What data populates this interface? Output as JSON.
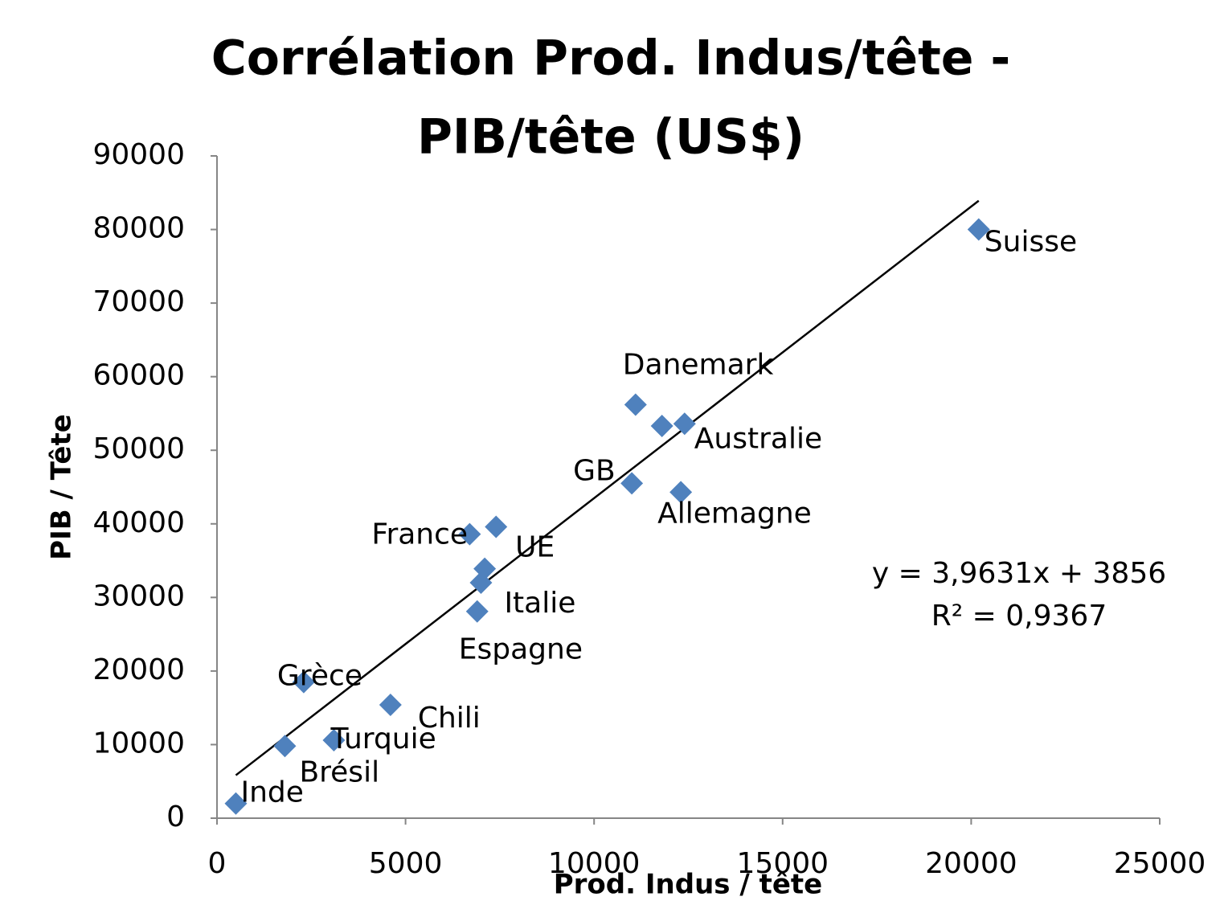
{
  "chart_data": {
    "type": "scatter",
    "title": [
      "Corrélation Prod. Indus/tête -",
      "PIB/tête (US$)"
    ],
    "x_label": "Prod. Indus / tête",
    "y_label": "PIB / Tête",
    "series": [
      {
        "color": "#4f81bd",
        "x": [
          20200,
          11100,
          11800,
          12400,
          11000,
          12300,
          6700,
          7400,
          7100,
          7000,
          6900,
          2300,
          4600,
          3100,
          1800,
          500
        ],
        "values": [
          80000,
          56200,
          53300,
          53600,
          45500,
          44300,
          38600,
          39600,
          33900,
          32000,
          28100,
          18500,
          15400,
          10600,
          9800,
          2000
        ],
        "labels": [
          "Suisse",
          "Danemark",
          null,
          "Australie",
          "GB",
          "Allemagne",
          "France",
          null,
          "UE",
          "Italie",
          "Espagne",
          "Grèce",
          "Chili",
          "Turquie",
          "Brésil",
          "Inde"
        ]
      }
    ],
    "trendline": {
      "slope": 3.9631,
      "intercept": 3856,
      "label": "y = 3,9631x + 3856",
      "r2_label": "R² = 0,9367",
      "color": "#000000"
    },
    "xlim": [
      0,
      25000
    ],
    "xticks": [
      0,
      5000,
      10000,
      15000,
      20000,
      25000
    ],
    "ylim": [
      0,
      90000
    ],
    "yticks": [
      0,
      10000,
      20000,
      30000,
      40000,
      50000,
      60000,
      70000,
      80000,
      90000
    ],
    "grid": false
  }
}
